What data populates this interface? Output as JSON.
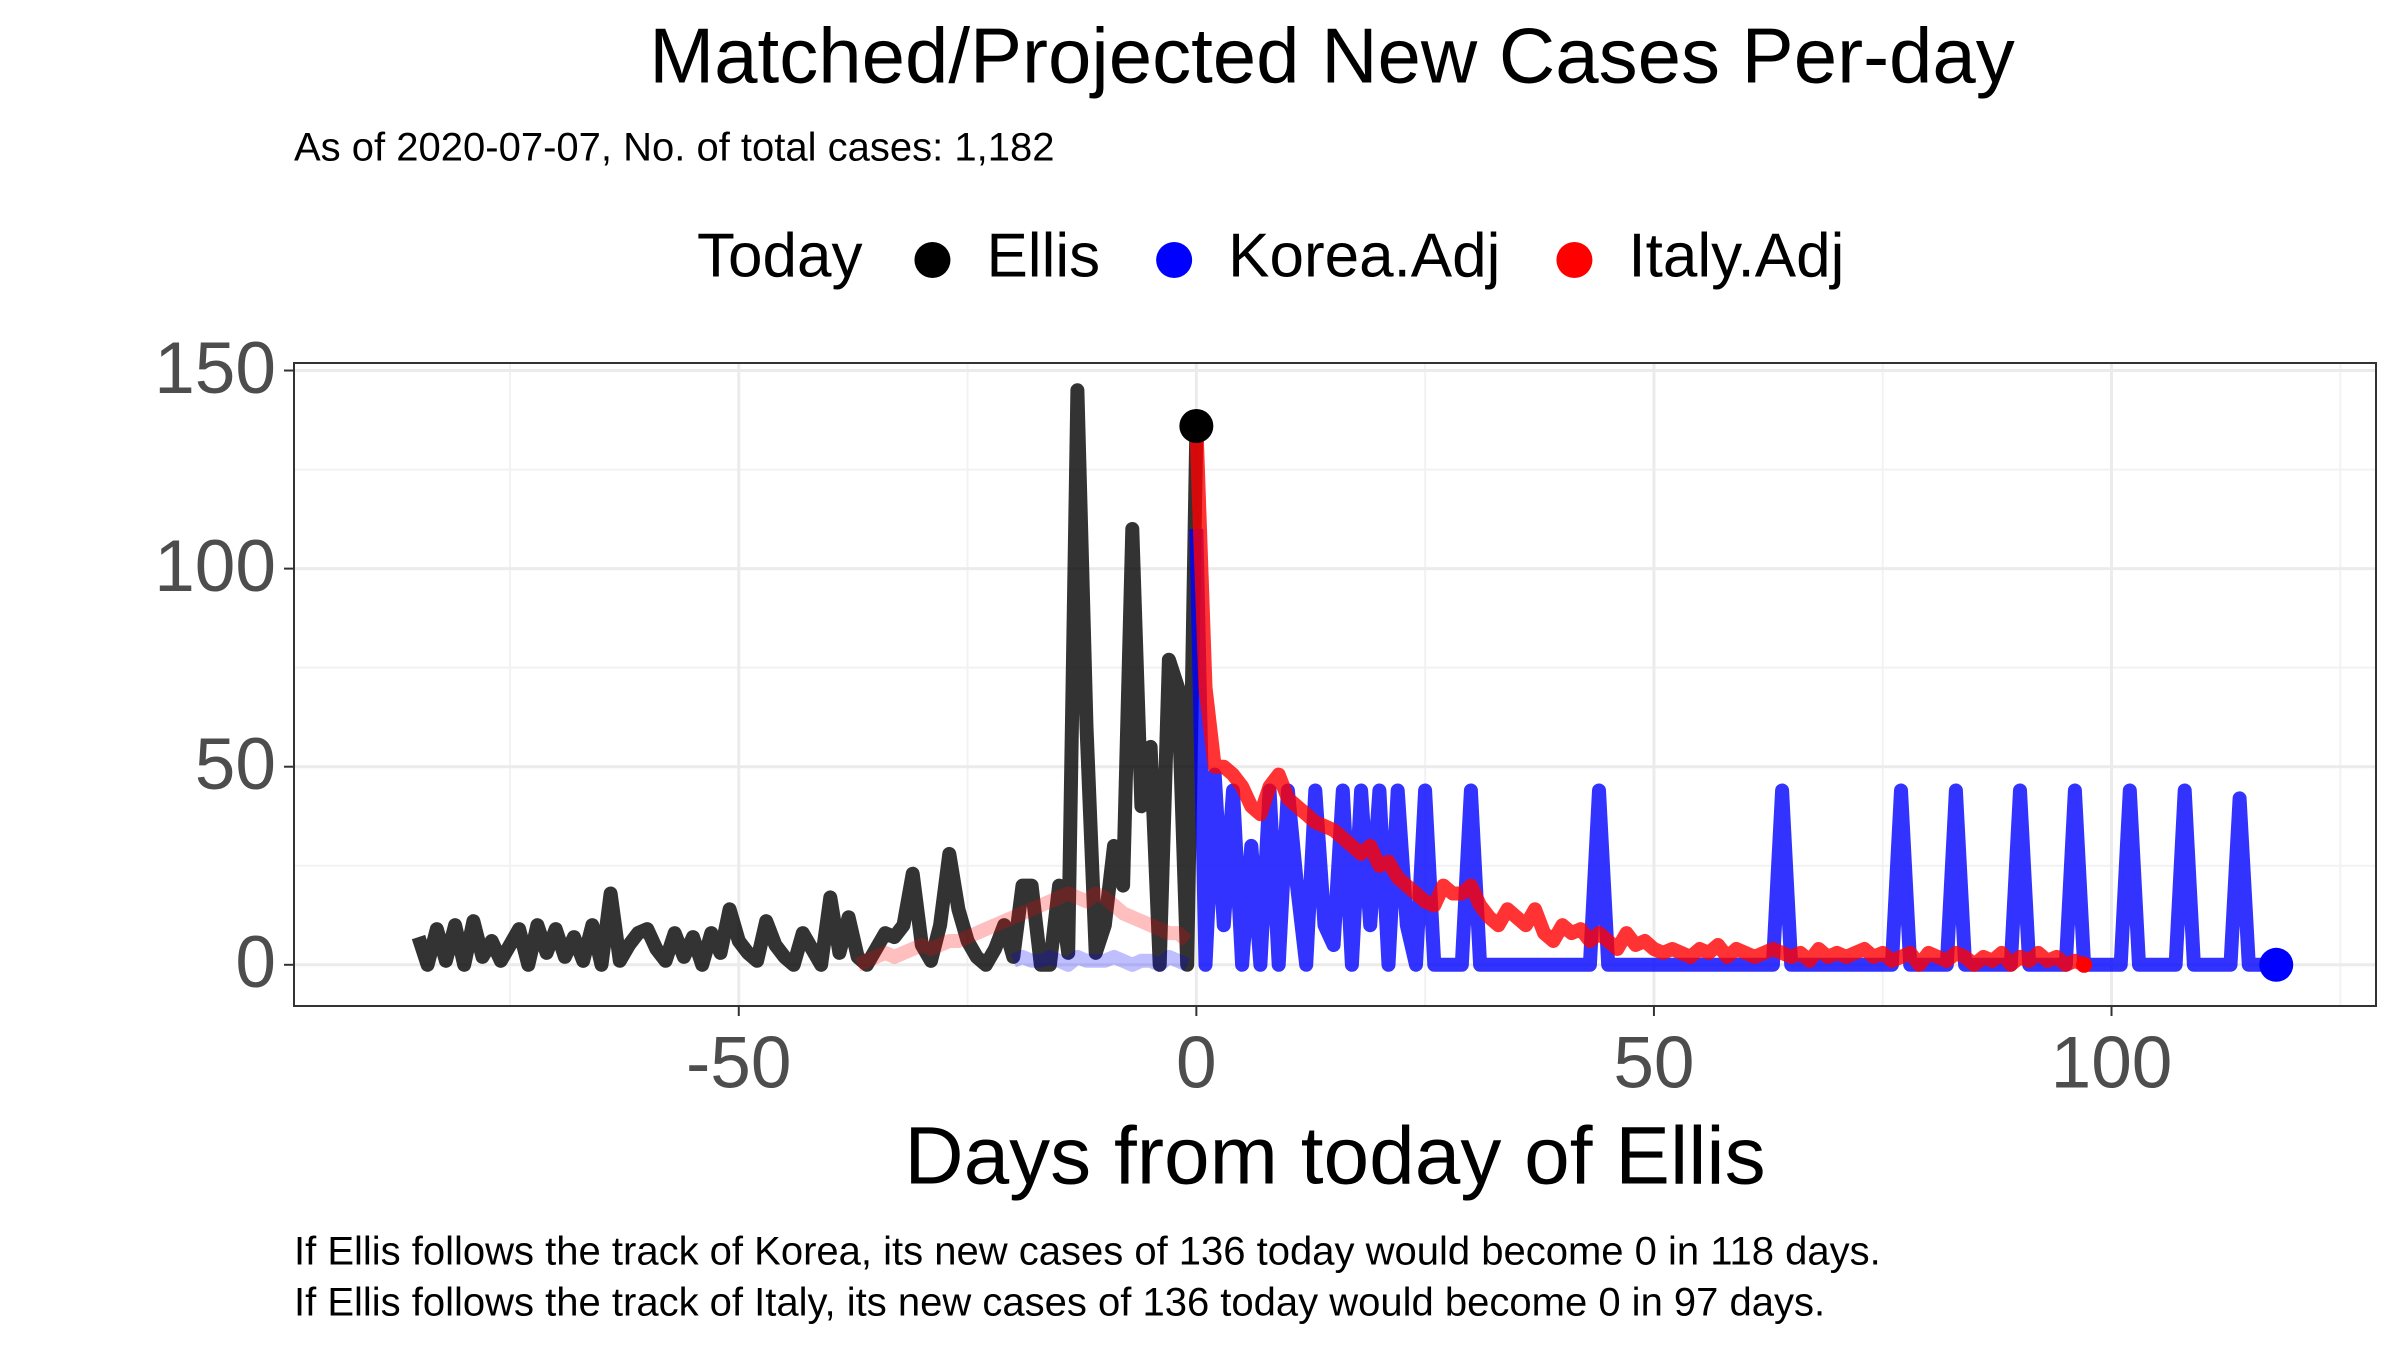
{
  "chart_data": {
    "type": "line",
    "title": "Matched/Projected New Cases Per-day",
    "subtitle": "As of 2020-07-07, No. of total cases: 1,182",
    "legend_title": "Today",
    "legend": "top",
    "x_label": "Days from today of Ellis",
    "caption": [
      "If Ellis follows the track of Korea, its new cases of 136 today would become 0 in 118 days.",
      "If Ellis follows the track of Italy, its new cases of 136 today would become 0 in 97 days."
    ],
    "xlim": [
      -98.6,
      128.9
    ],
    "xticks": [
      -50,
      0,
      50,
      100
    ],
    "ylim": [
      -10.4,
      151.9
    ],
    "yticks": [
      0,
      50,
      100,
      150
    ],
    "grid": true,
    "series": [
      {
        "name": "Ellis",
        "color": "#000000",
        "x": [
          -85,
          -84,
          -83,
          -82,
          -81,
          -80,
          -79,
          -78,
          -77,
          -76,
          -75,
          -74,
          -73,
          -72,
          -71,
          -70,
          -69,
          -68,
          -67,
          -66,
          -65,
          -64,
          -63,
          -62,
          -61,
          -60,
          -59,
          -58,
          -57,
          -56,
          -55,
          -54,
          -53,
          -52,
          -51,
          -50,
          -49,
          -48,
          -47,
          -46,
          -45,
          -44,
          -43,
          -42,
          -41,
          -40,
          -39,
          -38,
          -37,
          -36,
          -35,
          -34,
          -33,
          -32,
          -31,
          -30,
          -29,
          -28,
          -27,
          -26,
          -25,
          -24,
          -23,
          -22,
          -21,
          -20,
          -19,
          -18,
          -17,
          -16,
          -15,
          -14,
          -13,
          -12,
          -11,
          -10,
          -9,
          -8,
          -7,
          -6,
          -5,
          -4,
          -3,
          -2,
          -1,
          0
        ],
        "values": [
          7,
          0,
          9,
          1,
          10,
          0,
          11,
          2,
          6,
          1,
          5,
          9,
          0,
          10,
          3,
          9,
          2,
          7,
          1,
          10,
          0,
          18,
          1,
          5,
          8,
          9,
          4,
          1,
          8,
          2,
          7,
          0,
          8,
          3,
          14,
          6,
          3,
          1,
          11,
          5,
          2,
          0,
          8,
          4,
          0,
          17,
          3,
          12,
          2,
          0,
          4,
          8,
          7,
          10,
          23,
          5,
          1,
          10,
          28,
          14,
          6,
          2,
          0,
          4,
          10,
          2,
          20,
          20,
          0,
          0,
          20,
          3,
          145,
          60,
          3,
          10,
          30,
          20,
          110,
          40,
          55,
          0,
          77,
          70,
          0,
          136
        ]
      },
      {
        "name": "Korea.Adj",
        "color": "#0000ff",
        "x": [
          -20,
          -19,
          -18,
          -17,
          -16,
          -15,
          -14,
          -13,
          -12,
          -11,
          -10,
          -9,
          -8,
          -7,
          -6,
          -5,
          -4,
          -3,
          -2,
          -1,
          0,
          1,
          2,
          3,
          4,
          5,
          6,
          7,
          8,
          9,
          10,
          11,
          12,
          13,
          14,
          15,
          16,
          17,
          18,
          19,
          20,
          21,
          22,
          23,
          24,
          25,
          26,
          27,
          28,
          29,
          30,
          31,
          32,
          33,
          34,
          35,
          36,
          37,
          38,
          39,
          40,
          41,
          42,
          43,
          44,
          45,
          46,
          47,
          48,
          49,
          50,
          51,
          52,
          53,
          54,
          55,
          56,
          57,
          58,
          59,
          60,
          61,
          62,
          63,
          64,
          65,
          66,
          67,
          68,
          69,
          70,
          71,
          72,
          73,
          74,
          75,
          76,
          77,
          78,
          79,
          80,
          81,
          82,
          83,
          84,
          85,
          86,
          87,
          88,
          89,
          90,
          91,
          92,
          93,
          94,
          95,
          96,
          97,
          98,
          99,
          100,
          101,
          102,
          103,
          104,
          105,
          106,
          107,
          108,
          109,
          110,
          111,
          112,
          113,
          114,
          115,
          116,
          117,
          118
        ],
        "values": [
          1,
          2,
          1,
          1,
          2,
          1,
          0,
          2,
          1,
          1,
          1,
          2,
          1,
          0,
          1,
          1,
          0,
          2,
          1,
          0,
          110,
          0,
          48,
          10,
          44,
          0,
          30,
          0,
          44,
          0,
          44,
          20,
          0,
          44,
          10,
          5,
          44,
          0,
          44,
          10,
          44,
          0,
          44,
          10,
          0,
          44,
          0,
          0,
          0,
          0,
          44,
          0,
          0,
          0,
          0,
          0,
          0,
          0,
          0,
          0,
          0,
          0,
          0,
          0,
          44,
          0,
          0,
          0,
          0,
          0,
          0,
          0,
          0,
          0,
          0,
          0,
          0,
          0,
          0,
          0,
          0,
          0,
          0,
          0,
          44,
          0,
          0,
          0,
          0,
          0,
          0,
          0,
          0,
          0,
          0,
          0,
          0,
          44,
          0,
          0,
          0,
          0,
          0,
          44,
          0,
          0,
          0,
          0,
          0,
          0,
          44,
          0,
          0,
          0,
          0,
          0,
          44,
          0,
          0,
          0,
          0,
          0,
          44,
          0,
          0,
          0,
          0,
          0,
          44,
          0,
          0,
          0,
          0,
          0,
          42,
          0,
          0,
          0,
          0
        ]
      },
      {
        "name": "Italy.Adj",
        "color": "#ff0000",
        "x": [
          -37,
          -36,
          -35,
          -34,
          -33,
          -32,
          -31,
          -30,
          -29,
          -28,
          -27,
          -26,
          -25,
          -24,
          -23,
          -22,
          -21,
          -20,
          -19,
          -18,
          -17,
          -16,
          -15,
          -14,
          -13,
          -12,
          -11,
          -10,
          -9,
          -8,
          -7,
          -6,
          -5,
          -4,
          -3,
          -2,
          -1,
          0,
          1,
          2,
          3,
          4,
          5,
          6,
          7,
          8,
          9,
          10,
          11,
          12,
          13,
          14,
          15,
          16,
          17,
          18,
          19,
          20,
          21,
          22,
          23,
          24,
          25,
          26,
          27,
          28,
          29,
          30,
          31,
          32,
          33,
          34,
          35,
          36,
          37,
          38,
          39,
          40,
          41,
          42,
          43,
          44,
          45,
          46,
          47,
          48,
          49,
          50,
          51,
          52,
          53,
          54,
          55,
          56,
          57,
          58,
          59,
          60,
          61,
          62,
          63,
          64,
          65,
          66,
          67,
          68,
          69,
          70,
          71,
          72,
          73,
          74,
          75,
          76,
          77,
          78,
          79,
          80,
          81,
          82,
          83,
          84,
          85,
          86,
          87,
          88,
          89,
          90,
          91,
          92,
          93,
          94,
          95,
          96,
          97
        ],
        "values": [
          0,
          1,
          2,
          3,
          2,
          3,
          4,
          5,
          4,
          5,
          6,
          6,
          7,
          8,
          9,
          10,
          11,
          12,
          13,
          14,
          15,
          16,
          17,
          18,
          17,
          16,
          18,
          17,
          15,
          13,
          12,
          11,
          10,
          9,
          8,
          8,
          6,
          136,
          70,
          50,
          50,
          48,
          45,
          40,
          38,
          45,
          48,
          42,
          40,
          38,
          36,
          35,
          34,
          32,
          30,
          28,
          30,
          25,
          26,
          22,
          20,
          18,
          16,
          15,
          20,
          18,
          18,
          20,
          15,
          12,
          10,
          14,
          12,
          10,
          14,
          8,
          6,
          10,
          8,
          9,
          6,
          8,
          6,
          4,
          8,
          5,
          6,
          4,
          3,
          4,
          3,
          2,
          4,
          3,
          5,
          2,
          4,
          3,
          2,
          3,
          4,
          3,
          2,
          3,
          1,
          4,
          2,
          3,
          2,
          3,
          4,
          2,
          3,
          1,
          2,
          3,
          0,
          3,
          2,
          1,
          3,
          2,
          0,
          2,
          1,
          3,
          0,
          2,
          1,
          3,
          1,
          2,
          0,
          1,
          0
        ]
      }
    ]
  }
}
